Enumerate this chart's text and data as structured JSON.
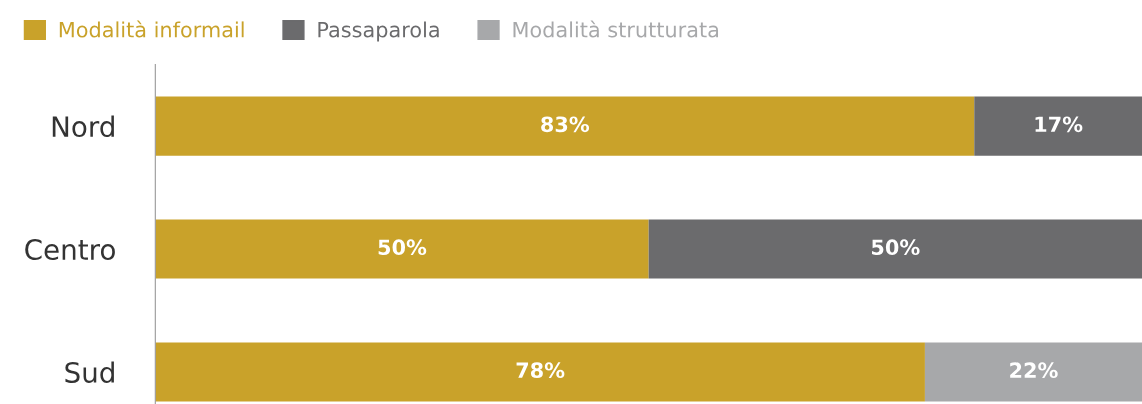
{
  "chart_data": {
    "type": "bar",
    "orientation": "horizontal",
    "stacked": true,
    "categories": [
      "Nord",
      "Centro",
      "Sud"
    ],
    "series": [
      {
        "name": "Modalità informail",
        "color": "#c9a22a",
        "values": [
          83,
          50,
          78
        ],
        "value_labels": [
          "83%",
          "50%",
          "78%"
        ]
      },
      {
        "name": "Passaparola",
        "color": "#6b6b6d",
        "values": [
          17,
          50,
          0
        ],
        "value_labels": [
          "17%",
          "50%",
          null
        ]
      },
      {
        "name": "Modalità strutturata",
        "color": "#a7a8aa",
        "values": [
          0,
          0,
          22
        ],
        "value_labels": [
          null,
          null,
          "22%"
        ]
      }
    ],
    "xlim": [
      0,
      100
    ],
    "tick_labels": "y",
    "legend": "top left",
    "grid": false
  }
}
